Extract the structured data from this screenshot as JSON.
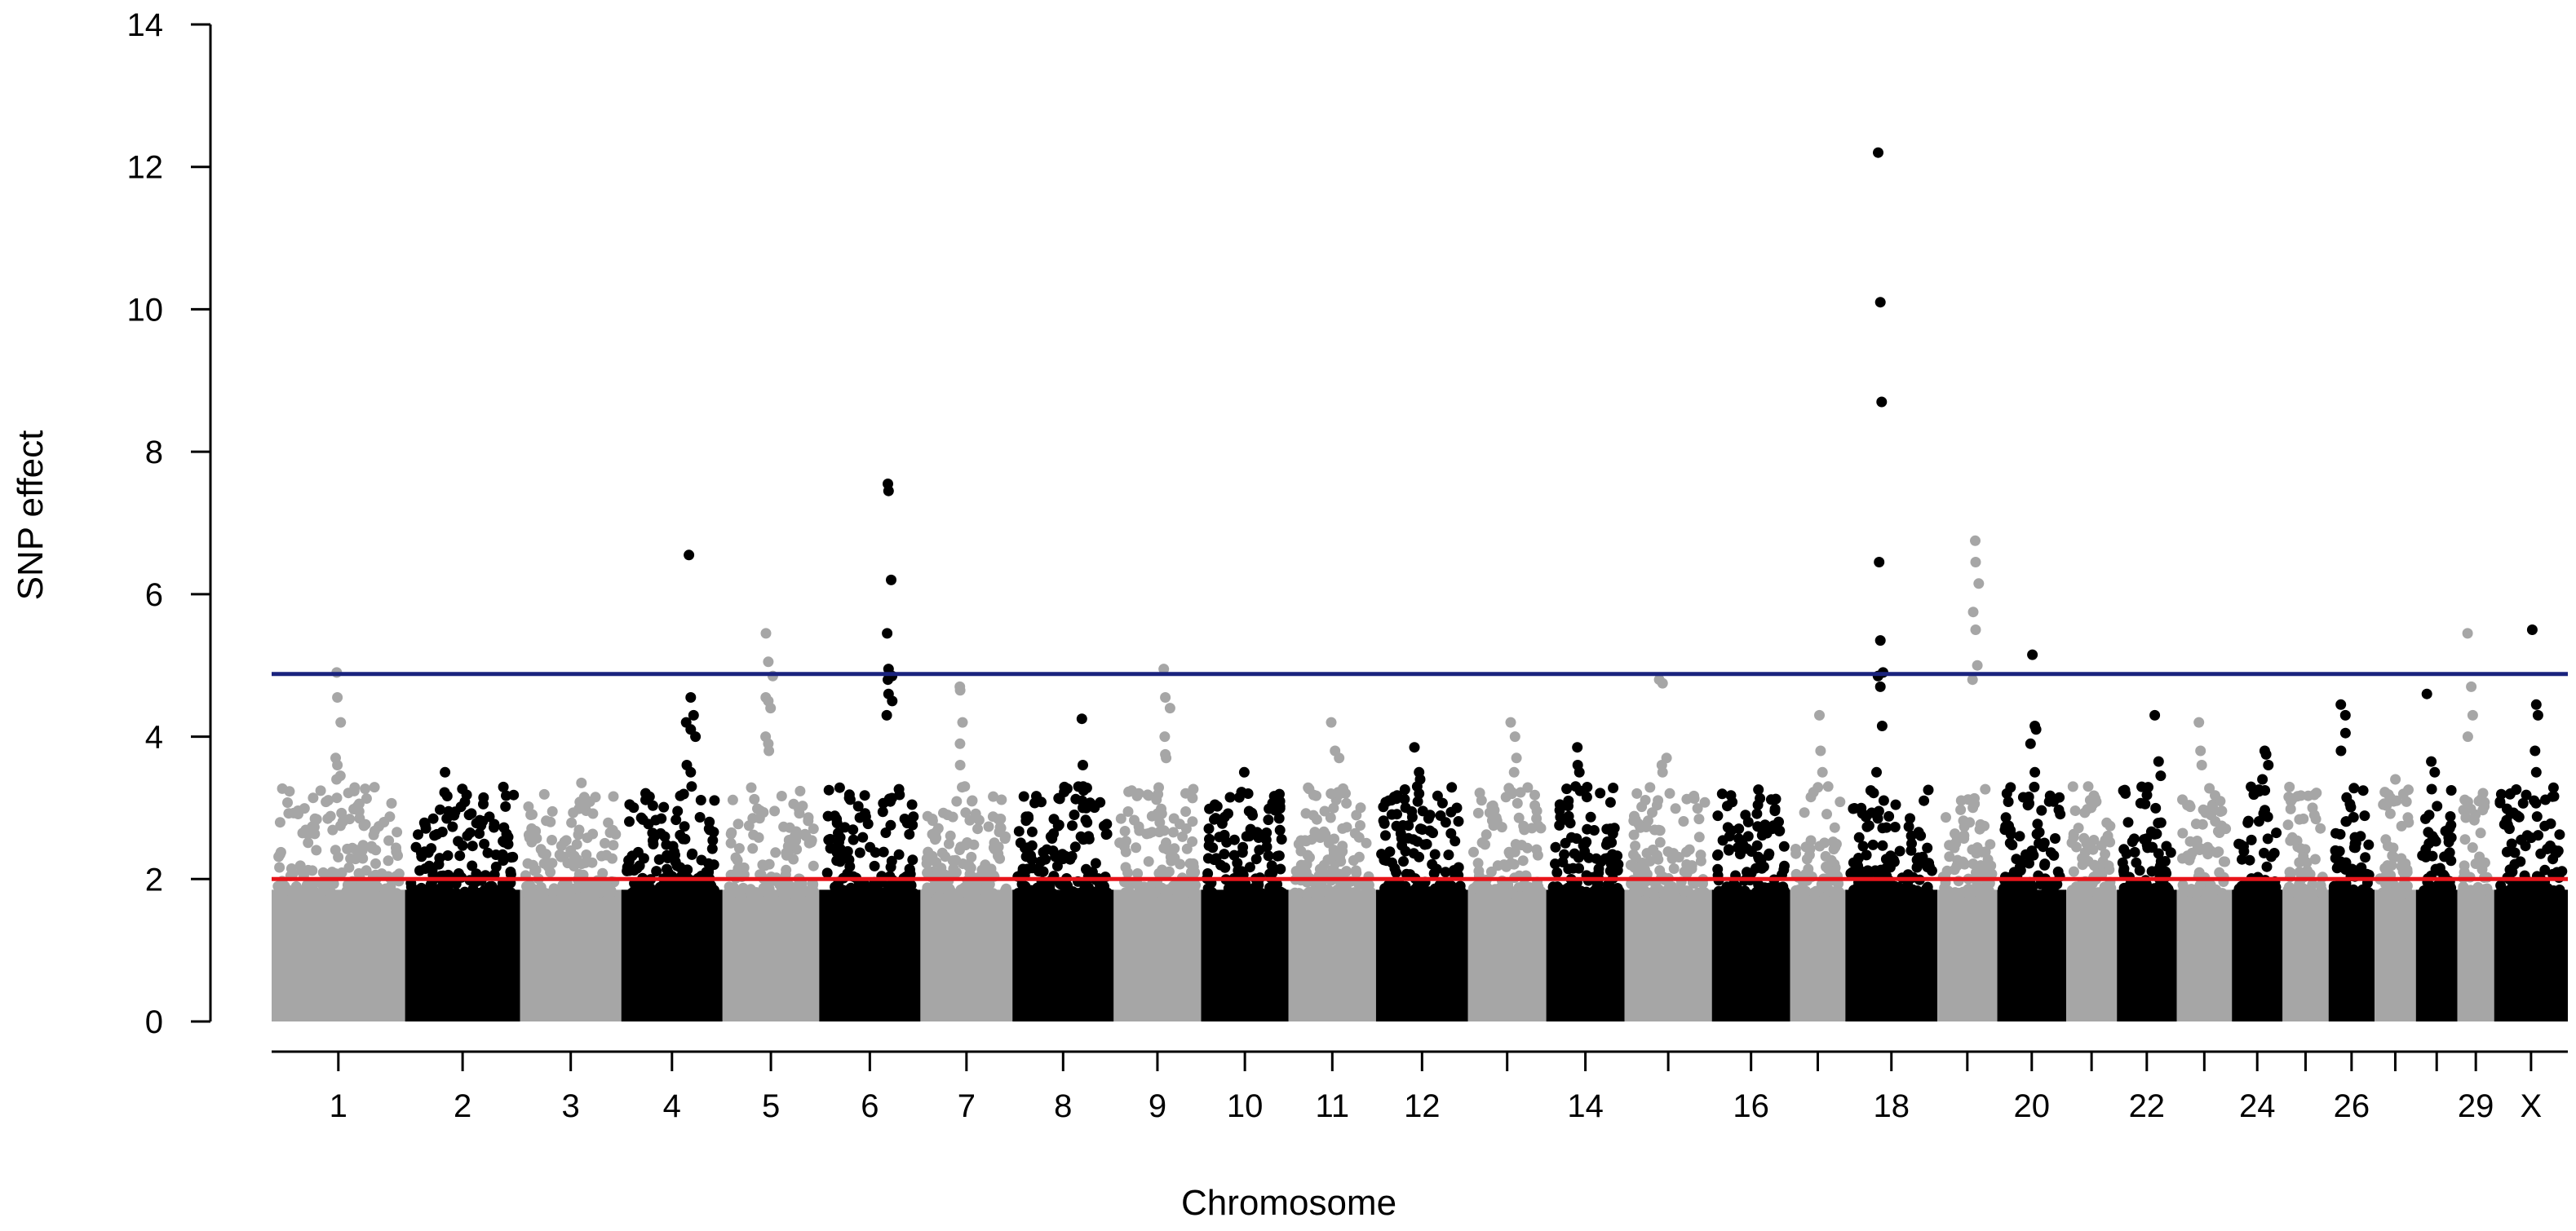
{
  "chart_data": {
    "type": "scatter",
    "title": "",
    "xlabel": "Chromosome",
    "ylabel": "SNP effect",
    "ylim": [
      0,
      14
    ],
    "yticks": [
      "0",
      "2",
      "4",
      "6",
      "8",
      "10",
      "12",
      "14"
    ],
    "grid": false,
    "legend": "none",
    "chromosomes": [
      "1",
      "2",
      "3",
      "4",
      "5",
      "6",
      "7",
      "8",
      "9",
      "10",
      "11",
      "12",
      "13",
      "14",
      "15",
      "16",
      "17",
      "18",
      "19",
      "20",
      "21",
      "22",
      "23",
      "24",
      "25",
      "26",
      "27",
      "28",
      "29",
      "X"
    ],
    "x_tick_labels": [
      "1",
      "2",
      "3",
      "4",
      "5",
      "6",
      "7",
      "8",
      "9",
      "10",
      "11",
      "12",
      "14",
      "16",
      "18",
      "20",
      "22",
      "24",
      "26",
      "29",
      "X"
    ],
    "point_colors": [
      "#a6a6a6",
      "#000000"
    ],
    "thresholds": [
      {
        "value": 4.88,
        "color": "#1a237e"
      },
      {
        "value": 2.0,
        "color": "#e8141a"
      }
    ],
    "peaks": [
      {
        "chromosome": "1",
        "values": [
          4.9,
          4.55,
          4.2,
          3.7,
          3.6,
          3.45,
          3.4
        ]
      },
      {
        "chromosome": "2",
        "values": [
          3.5,
          2.95,
          2.9,
          2.85
        ]
      },
      {
        "chromosome": "3",
        "values": [
          3.35,
          3.15,
          3.05
        ]
      },
      {
        "chromosome": "4",
        "values": [
          6.55,
          4.55,
          4.3,
          4.2,
          4.1,
          4.0,
          3.6,
          3.5,
          3.3
        ]
      },
      {
        "chromosome": "5",
        "values": [
          5.45,
          5.05,
          4.85,
          4.55,
          4.5,
          4.4,
          4.0,
          3.9,
          3.8
        ]
      },
      {
        "chromosome": "6",
        "values": [
          7.55,
          7.45,
          6.2,
          5.45,
          4.95,
          4.85,
          4.8,
          4.6,
          4.5,
          4.3,
          3.1
        ]
      },
      {
        "chromosome": "7",
        "values": [
          4.7,
          4.65,
          4.2,
          3.9,
          3.6,
          3.3
        ]
      },
      {
        "chromosome": "8",
        "values": [
          4.25,
          3.6,
          3.3,
          3.1,
          3.0
        ]
      },
      {
        "chromosome": "9",
        "values": [
          4.95,
          4.55,
          4.4,
          4.0,
          3.75,
          3.7
        ]
      },
      {
        "chromosome": "10",
        "values": [
          3.5,
          3.2,
          2.7,
          2.6
        ]
      },
      {
        "chromosome": "11",
        "values": [
          4.2,
          3.8,
          3.7,
          3.2
        ]
      },
      {
        "chromosome": "12",
        "values": [
          3.85,
          3.5,
          3.4,
          3.3,
          3.2
        ]
      },
      {
        "chromosome": "13",
        "values": [
          4.2,
          4.0,
          3.7,
          3.5
        ]
      },
      {
        "chromosome": "14",
        "values": [
          3.85,
          3.6,
          3.5,
          3.3
        ]
      },
      {
        "chromosome": "15",
        "values": [
          4.8,
          4.75,
          3.7,
          3.6,
          3.5
        ]
      },
      {
        "chromosome": "16",
        "values": [
          2.9,
          2.8,
          2.6
        ]
      },
      {
        "chromosome": "17",
        "values": [
          4.3,
          3.8,
          3.5
        ]
      },
      {
        "chromosome": "18",
        "values": [
          12.2,
          10.1,
          8.7,
          6.45,
          5.35,
          4.9,
          4.85,
          4.7,
          4.15,
          3.5
        ]
      },
      {
        "chromosome": "19",
        "values": [
          6.75,
          6.45,
          6.15,
          5.75,
          5.5,
          5.0,
          4.8
        ]
      },
      {
        "chromosome": "20",
        "values": [
          5.15,
          4.15,
          4.1,
          3.9,
          3.5
        ]
      },
      {
        "chromosome": "21",
        "values": [
          3.3,
          3.0
        ]
      },
      {
        "chromosome": "22",
        "values": [
          4.3,
          3.65,
          3.45
        ]
      },
      {
        "chromosome": "23",
        "values": [
          4.2,
          3.8,
          3.6
        ]
      },
      {
        "chromosome": "24",
        "values": [
          3.8,
          3.75,
          3.6,
          3.4
        ]
      },
      {
        "chromosome": "25",
        "values": [
          3.0,
          2.9
        ]
      },
      {
        "chromosome": "26",
        "values": [
          4.45,
          4.3,
          4.05,
          3.8
        ]
      },
      {
        "chromosome": "27",
        "values": [
          3.4,
          3.1
        ]
      },
      {
        "chromosome": "28",
        "values": [
          4.6,
          3.65,
          3.5
        ]
      },
      {
        "chromosome": "29",
        "values": [
          5.45,
          4.7,
          4.3,
          4.0
        ]
      },
      {
        "chromosome": "X",
        "values": [
          5.5,
          4.45,
          4.3,
          3.8,
          3.5
        ]
      }
    ]
  }
}
